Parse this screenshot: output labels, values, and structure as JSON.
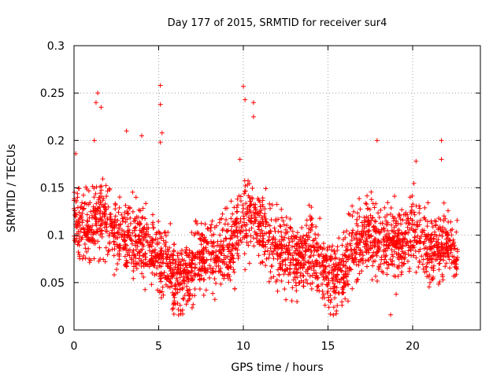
{
  "chart_data": {
    "type": "scatter",
    "title": "Day 177 of 2015, SRMTID for receiver sur4",
    "xlabel": "GPS time / hours",
    "ylabel": "SRMTID / TECUs",
    "xlim": [
      0,
      24
    ],
    "ylim": [
      0,
      0.3
    ],
    "xticks": [
      0,
      5,
      10,
      15,
      20
    ],
    "xtick_labels": [
      "0",
      "5",
      "10",
      "15",
      "20"
    ],
    "yticks": [
      0,
      0.05,
      0.1,
      0.15,
      0.2,
      0.25,
      0.3
    ],
    "ytick_labels": [
      "0",
      "0.05",
      "0.1",
      "0.15",
      "0.2",
      "0.25",
      "0.3"
    ],
    "grid": true,
    "marker": "+",
    "point_count_estimate": 2600,
    "series": [
      {
        "name": "sur4",
        "color": "#ff0000",
        "x_range": [
          0,
          22.7
        ],
        "trend": [
          {
            "x": 0.0,
            "y": 0.12
          },
          {
            "x": 0.5,
            "y": 0.11
          },
          {
            "x": 1.0,
            "y": 0.105
          },
          {
            "x": 1.5,
            "y": 0.125
          },
          {
            "x": 2.0,
            "y": 0.11
          },
          {
            "x": 3.0,
            "y": 0.1
          },
          {
            "x": 4.0,
            "y": 0.095
          },
          {
            "x": 5.0,
            "y": 0.08
          },
          {
            "x": 5.5,
            "y": 0.065
          },
          {
            "x": 6.0,
            "y": 0.055
          },
          {
            "x": 6.5,
            "y": 0.055
          },
          {
            "x": 7.5,
            "y": 0.075
          },
          {
            "x": 8.5,
            "y": 0.085
          },
          {
            "x": 9.5,
            "y": 0.09
          },
          {
            "x": 10.0,
            "y": 0.115
          },
          {
            "x": 10.5,
            "y": 0.13
          },
          {
            "x": 11.0,
            "y": 0.11
          },
          {
            "x": 12.0,
            "y": 0.085
          },
          {
            "x": 13.0,
            "y": 0.075
          },
          {
            "x": 14.0,
            "y": 0.085
          },
          {
            "x": 14.5,
            "y": 0.07
          },
          {
            "x": 15.0,
            "y": 0.06
          },
          {
            "x": 15.5,
            "y": 0.055
          },
          {
            "x": 16.0,
            "y": 0.07
          },
          {
            "x": 16.5,
            "y": 0.09
          },
          {
            "x": 17.5,
            "y": 0.1
          },
          {
            "x": 18.5,
            "y": 0.09
          },
          {
            "x": 19.5,
            "y": 0.095
          },
          {
            "x": 20.0,
            "y": 0.11
          },
          {
            "x": 20.5,
            "y": 0.095
          },
          {
            "x": 21.0,
            "y": 0.08
          },
          {
            "x": 21.5,
            "y": 0.09
          },
          {
            "x": 22.0,
            "y": 0.085
          },
          {
            "x": 22.7,
            "y": 0.08
          }
        ],
        "spread": 0.03,
        "highlights": [
          {
            "x": 0.1,
            "y": 0.186
          },
          {
            "x": 1.4,
            "y": 0.25
          },
          {
            "x": 1.3,
            "y": 0.24
          },
          {
            "x": 1.6,
            "y": 0.235
          },
          {
            "x": 1.2,
            "y": 0.2
          },
          {
            "x": 5.1,
            "y": 0.258
          },
          {
            "x": 5.1,
            "y": 0.238
          },
          {
            "x": 5.2,
            "y": 0.208
          },
          {
            "x": 5.1,
            "y": 0.198
          },
          {
            "x": 10.0,
            "y": 0.257
          },
          {
            "x": 10.1,
            "y": 0.243
          },
          {
            "x": 10.6,
            "y": 0.24
          },
          {
            "x": 10.6,
            "y": 0.225
          },
          {
            "x": 9.8,
            "y": 0.18
          },
          {
            "x": 4.0,
            "y": 0.205
          },
          {
            "x": 3.1,
            "y": 0.21
          },
          {
            "x": 6.3,
            "y": 0.02
          },
          {
            "x": 18.7,
            "y": 0.016
          },
          {
            "x": 21.7,
            "y": 0.2
          },
          {
            "x": 21.7,
            "y": 0.18
          },
          {
            "x": 20.2,
            "y": 0.178
          },
          {
            "x": 17.9,
            "y": 0.2
          },
          {
            "x": 15.5,
            "y": 0.02
          }
        ]
      }
    ]
  }
}
